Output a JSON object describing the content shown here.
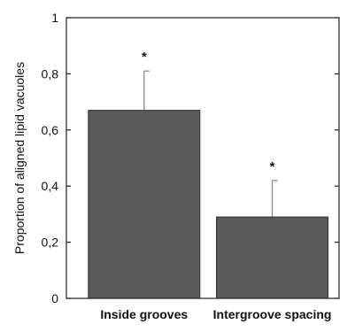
{
  "chart_data": {
    "type": "bar",
    "title": "",
    "xlabel": "",
    "ylabel": "Proportion of aligned lipid vacuoles",
    "categories": [
      "Inside grooves",
      "Intergroove spacing"
    ],
    "values": [
      0.67,
      0.29
    ],
    "error_upper": [
      0.81,
      0.42
    ],
    "annotations": [
      "*",
      "*"
    ],
    "ylim": [
      0,
      1
    ],
    "yticks": [
      0,
      0.2,
      0.4,
      0.6,
      0.8,
      1
    ],
    "ytick_labels": [
      "0",
      "0,2",
      "0,4",
      "0,6",
      "0,8",
      "1"
    ],
    "bar_color": "#595959",
    "error_bar_color": "#8a8a8a",
    "grid": false
  }
}
